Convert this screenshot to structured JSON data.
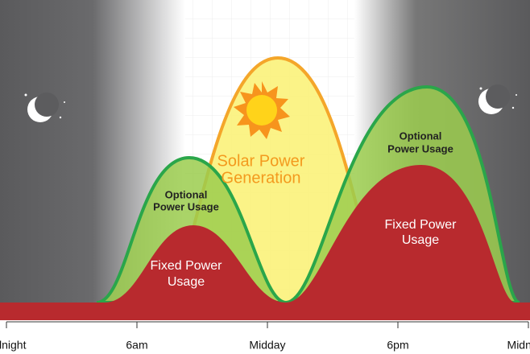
{
  "x_axis": {
    "labels": [
      "Midnight",
      "6am",
      "Midday",
      "6pm",
      "Midnight"
    ]
  },
  "annotations": {
    "solar": [
      "Solar Power",
      "Generation"
    ],
    "left_optional": [
      "Optional",
      "Power Usage"
    ],
    "left_fixed": [
      "Fixed Power",
      "Usage"
    ],
    "right_optional": [
      "Optional",
      "Power Usage"
    ],
    "right_fixed": [
      "Fixed Power",
      "Usage"
    ]
  }
}
